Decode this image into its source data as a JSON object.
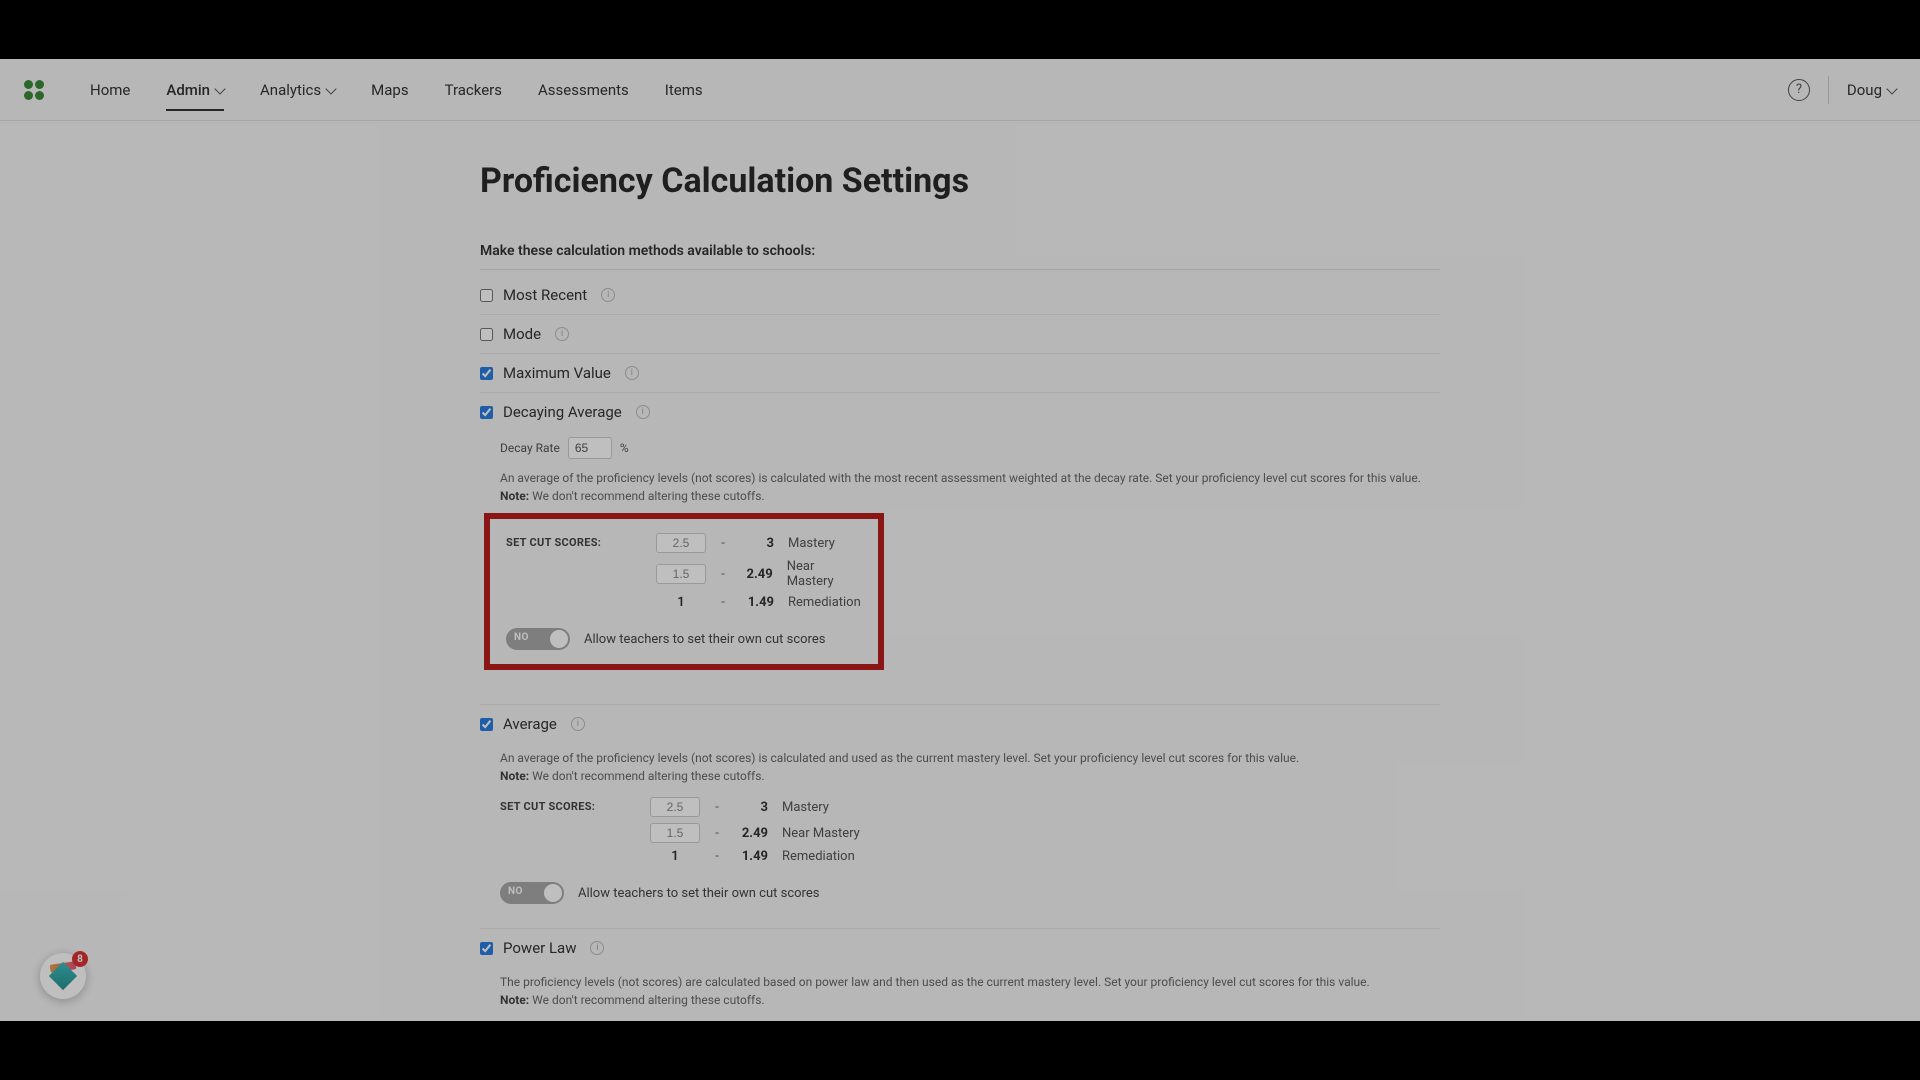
{
  "nav": {
    "items": [
      {
        "label": "Home",
        "dropdown": false,
        "active": false
      },
      {
        "label": "Admin",
        "dropdown": true,
        "active": true
      },
      {
        "label": "Analytics",
        "dropdown": true,
        "active": false
      },
      {
        "label": "Maps",
        "dropdown": false,
        "active": false
      },
      {
        "label": "Trackers",
        "dropdown": false,
        "active": false
      },
      {
        "label": "Assessments",
        "dropdown": false,
        "active": false
      },
      {
        "label": "Items",
        "dropdown": false,
        "active": false
      }
    ],
    "user": "Doug"
  },
  "page": {
    "title": "Proficiency Calculation Settings",
    "subhead": "Make these calculation methods available to schools:"
  },
  "methods": {
    "most_recent": {
      "label": "Most Recent",
      "checked": false
    },
    "mode": {
      "label": "Mode",
      "checked": false
    },
    "max_value": {
      "label": "Maximum Value",
      "checked": true
    },
    "decaying_avg": {
      "label": "Decaying Average",
      "checked": true,
      "decay_rate_label": "Decay Rate",
      "decay_rate_value": "65",
      "decay_rate_suffix": "%",
      "desc": "An average of the proficiency levels (not scores) is calculated with the most recent assessment weighted at the decay rate. Set your proficiency level cut scores for this value.",
      "note_label": "Note:",
      "note_text": "We don't recommend altering these cutoffs.",
      "cut_label": "SET CUT SCORES:",
      "cut_rows": [
        {
          "min": "2.5",
          "min_editable": true,
          "max": "3",
          "name": "Mastery"
        },
        {
          "min": "1.5",
          "min_editable": true,
          "max": "2.49",
          "name": "Near Mastery"
        },
        {
          "min": "1",
          "min_editable": false,
          "max": "1.49",
          "name": "Remediation"
        }
      ],
      "toggle_state": "NO",
      "toggle_label": "Allow teachers to set their own cut scores"
    },
    "average": {
      "label": "Average",
      "checked": true,
      "desc": "An average of the proficiency levels (not scores) is calculated and used as the current mastery level. Set your proficiency level cut scores for this value.",
      "note_label": "Note:",
      "note_text": "We don't recommend altering these cutoffs.",
      "cut_label": "SET CUT SCORES:",
      "cut_rows": [
        {
          "min": "2.5",
          "min_editable": true,
          "max": "3",
          "name": "Mastery"
        },
        {
          "min": "1.5",
          "min_editable": true,
          "max": "2.49",
          "name": "Near Mastery"
        },
        {
          "min": "1",
          "min_editable": false,
          "max": "1.49",
          "name": "Remediation"
        }
      ],
      "toggle_state": "NO",
      "toggle_label": "Allow teachers to set their own cut scores"
    },
    "power_law": {
      "label": "Power Law",
      "checked": true,
      "desc": "The proficiency levels (not scores) are calculated based on power law and then used as the current mastery level. Set your proficiency level cut scores for this value.",
      "note_label": "Note:",
      "note_text": "We don't recommend altering these cutoffs."
    }
  },
  "float_badge": {
    "count": "8"
  },
  "colors": {
    "highlight_border": "#b91c1c",
    "nav_bg": "#f5f5f5",
    "checkbox_accent": "#2b7de0"
  }
}
